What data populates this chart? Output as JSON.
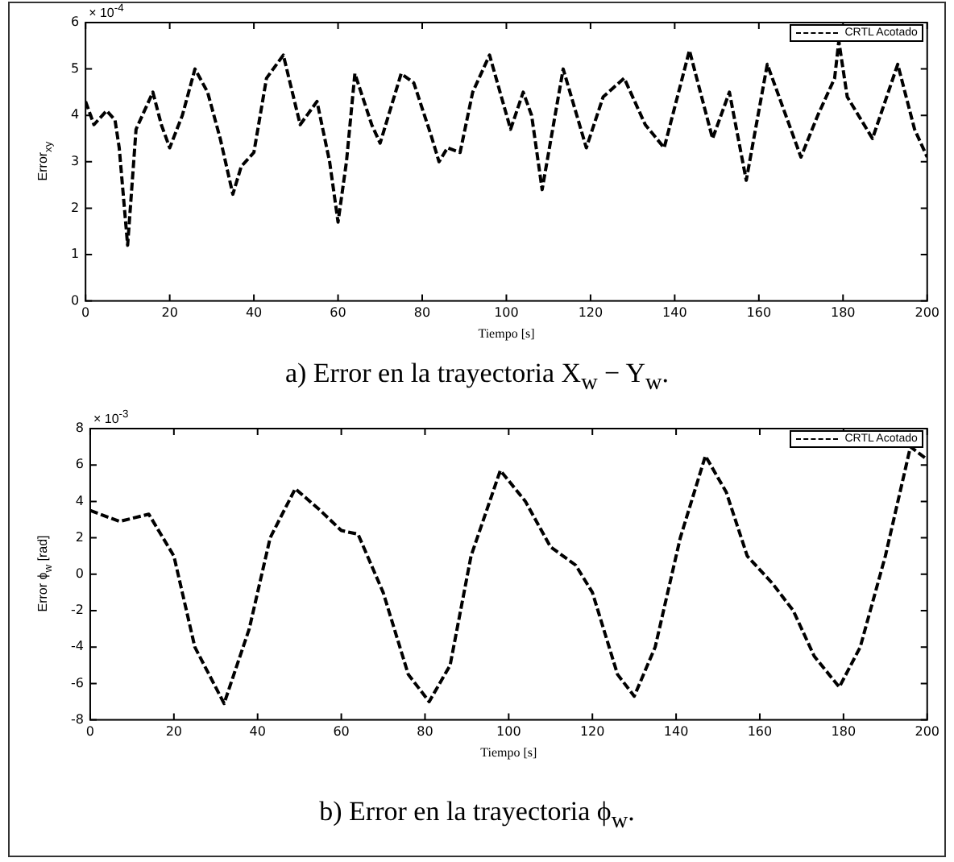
{
  "chart_data": [
    {
      "type": "line",
      "title": "a) Error en la trayectoria X$_{w}$ − Y$_{w}$.",
      "xlabel": "Tiempo [s]",
      "ylabel": "Error$_{xy}$",
      "annotations": [
        "× 10$^{-4}$"
      ],
      "legend": "top right",
      "marker": "none",
      "line_style": "dashed",
      "grid": false,
      "xlim": [
        0,
        200
      ],
      "xticks": [
        0,
        20,
        40,
        60,
        80,
        100,
        120,
        140,
        160,
        180,
        200
      ],
      "ylim": [
        0,
        6
      ],
      "yticks": [
        0,
        1,
        2,
        3,
        4,
        5,
        6
      ],
      "series": [
        {
          "name": "CRTL Acotado",
          "color": "#000000",
          "x": [
            0,
            2,
            5,
            7,
            8,
            10,
            12,
            14,
            16,
            18,
            20,
            23,
            26,
            29,
            32,
            35,
            37,
            40,
            43,
            47,
            51,
            55,
            58,
            60,
            62,
            64,
            68,
            70,
            73,
            75,
            78,
            82,
            84,
            86,
            89,
            92,
            96,
            101,
            104,
            106,
            108.5,
            113.5,
            119,
            123,
            128,
            133,
            137.5,
            143.5,
            149,
            153,
            157,
            162,
            170,
            174,
            178,
            179,
            181,
            187,
            193,
            197,
            200
          ],
          "values": [
            4.3,
            3.8,
            4.1,
            3.9,
            3.3,
            1.2,
            3.7,
            4.1,
            4.5,
            3.8,
            3.3,
            4.0,
            5.0,
            4.5,
            3.5,
            2.3,
            2.9,
            3.2,
            4.8,
            5.3,
            3.8,
            4.3,
            3.0,
            1.7,
            3.0,
            4.9,
            3.8,
            3.4,
            4.3,
            4.9,
            4.7,
            3.6,
            3.0,
            3.3,
            3.2,
            4.5,
            5.3,
            3.7,
            4.5,
            4.0,
            2.4,
            5.0,
            3.3,
            4.4,
            4.8,
            3.8,
            3.3,
            5.4,
            3.5,
            4.5,
            2.6,
            5.1,
            3.1,
            4.0,
            4.8,
            5.6,
            4.4,
            3.5,
            5.1,
            3.7,
            3.1
          ]
        }
      ]
    },
    {
      "type": "line",
      "title": "b) Error en la trayectoria ϕ$_{w}$.",
      "xlabel": "Tiempo [s]",
      "ylabel": "Error ϕ$_{w}$ [rad]",
      "annotations": [
        "× 10$^{-3}$"
      ],
      "legend": "top right",
      "marker": "none",
      "line_style": "dashed",
      "grid": false,
      "xlim": [
        0,
        200
      ],
      "xticks": [
        0,
        20,
        40,
        60,
        80,
        100,
        120,
        140,
        160,
        180,
        200
      ],
      "ylim": [
        -8,
        8
      ],
      "yticks": [
        -8,
        -6,
        -4,
        -2,
        0,
        2,
        4,
        6,
        8
      ],
      "series": [
        {
          "name": "CRTL Acotado",
          "color": "#000000",
          "x": [
            0,
            7,
            14,
            20,
            25,
            32,
            38,
            43,
            49,
            55,
            60,
            64,
            70,
            76,
            81,
            86,
            91,
            98,
            104,
            110,
            116,
            120,
            126,
            130,
            135,
            141,
            147,
            152,
            157,
            163,
            168,
            173,
            179,
            184,
            190,
            196,
            200
          ],
          "values": [
            3.5,
            2.9,
            3.3,
            1.0,
            -4,
            -7.1,
            -3,
            2,
            4.7,
            3.5,
            2.4,
            2.2,
            -1,
            -5.5,
            -7.0,
            -5,
            1,
            5.7,
            4,
            1.5,
            0.5,
            -1,
            -5.5,
            -6.7,
            -4,
            2,
            6.5,
            4.5,
            1,
            -0.5,
            -2,
            -4.5,
            -6.2,
            -4,
            1,
            7.0,
            6.3
          ]
        }
      ]
    }
  ]
}
